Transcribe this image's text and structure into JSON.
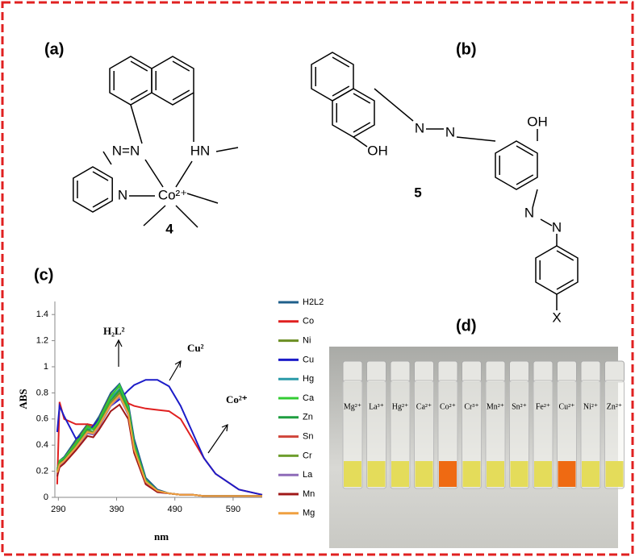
{
  "structures": [
    {
      "panel_label": "(a)",
      "number": "4",
      "labels": [
        "N=N",
        "HN",
        "N",
        "Co²⁺"
      ]
    },
    {
      "panel_label": "(b)",
      "number": "5",
      "labels": [
        "OH",
        "N",
        "N",
        "OH",
        "N",
        "N",
        "X"
      ]
    }
  ],
  "chart_data": {
    "type": "line",
    "panel_label": "(c)",
    "x_label": "nm",
    "y_label": "ABS",
    "annotations": [
      "H₂L²",
      "Cu²",
      "Co²⁺"
    ],
    "x": [
      288,
      292,
      300,
      320,
      340,
      350,
      360,
      380,
      395,
      410,
      420,
      440,
      460,
      480,
      500,
      520,
      540,
      560,
      600,
      640
    ],
    "xlim": [
      284,
      640
    ],
    "xticks": [
      290,
      390,
      490,
      590
    ],
    "ylim": [
      0,
      1.5
    ],
    "yticks": [
      0,
      0.2,
      0.4,
      0.6,
      0.8,
      1,
      1.2,
      1.4
    ],
    "series": [
      {
        "name": "H2L2",
        "color": "#1f5f8b",
        "values": [
          0.22,
          0.28,
          0.31,
          0.44,
          0.56,
          0.55,
          0.62,
          0.8,
          0.87,
          0.72,
          0.45,
          0.15,
          0.06,
          0.03,
          0.02,
          0.02,
          0.01,
          0.01,
          0.01,
          0.01
        ]
      },
      {
        "name": "Co",
        "color": "#e02020",
        "values": [
          0.1,
          0.73,
          0.6,
          0.56,
          0.56,
          0.55,
          0.6,
          0.72,
          0.8,
          0.72,
          0.7,
          0.68,
          0.67,
          0.66,
          0.6,
          0.45,
          0.3,
          0.18,
          0.06,
          0.02
        ]
      },
      {
        "name": "Ni",
        "color": "#6b8e23",
        "values": [
          0.2,
          0.27,
          0.3,
          0.42,
          0.55,
          0.53,
          0.6,
          0.78,
          0.85,
          0.68,
          0.4,
          0.13,
          0.05,
          0.03,
          0.02,
          0.02,
          0.01,
          0.01,
          0.01,
          0.01
        ]
      },
      {
        "name": "Cu",
        "color": "#1c1cc8",
        "values": [
          0.5,
          0.7,
          0.62,
          0.45,
          0.5,
          0.55,
          0.6,
          0.7,
          0.75,
          0.82,
          0.86,
          0.9,
          0.9,
          0.85,
          0.7,
          0.5,
          0.3,
          0.18,
          0.06,
          0.02
        ]
      },
      {
        "name": "Hg",
        "color": "#2a9aa8",
        "values": [
          0.19,
          0.26,
          0.29,
          0.4,
          0.53,
          0.52,
          0.58,
          0.76,
          0.83,
          0.67,
          0.39,
          0.12,
          0.05,
          0.03,
          0.02,
          0.02,
          0.01,
          0.01,
          0.01,
          0.01
        ]
      },
      {
        "name": "Ca",
        "color": "#33cc33",
        "values": [
          0.21,
          0.28,
          0.3,
          0.41,
          0.54,
          0.52,
          0.59,
          0.77,
          0.86,
          0.69,
          0.41,
          0.13,
          0.05,
          0.03,
          0.02,
          0.02,
          0.01,
          0.01,
          0.01,
          0.01
        ]
      },
      {
        "name": "Zn",
        "color": "#1e9e40",
        "values": [
          0.2,
          0.26,
          0.29,
          0.39,
          0.52,
          0.5,
          0.57,
          0.74,
          0.82,
          0.66,
          0.38,
          0.12,
          0.05,
          0.03,
          0.02,
          0.02,
          0.01,
          0.01,
          0.01,
          0.01
        ]
      },
      {
        "name": "Sn",
        "color": "#d0453a",
        "values": [
          0.18,
          0.25,
          0.28,
          0.38,
          0.5,
          0.49,
          0.55,
          0.72,
          0.79,
          0.64,
          0.37,
          0.12,
          0.05,
          0.03,
          0.02,
          0.02,
          0.01,
          0.01,
          0.01,
          0.01
        ]
      },
      {
        "name": "Cr",
        "color": "#6e9e2e",
        "values": [
          0.2,
          0.26,
          0.28,
          0.39,
          0.51,
          0.5,
          0.56,
          0.73,
          0.8,
          0.65,
          0.38,
          0.12,
          0.05,
          0.03,
          0.02,
          0.02,
          0.01,
          0.01,
          0.01,
          0.01
        ]
      },
      {
        "name": "La",
        "color": "#8e6bb8",
        "values": [
          0.17,
          0.24,
          0.27,
          0.37,
          0.49,
          0.48,
          0.54,
          0.7,
          0.77,
          0.63,
          0.36,
          0.11,
          0.04,
          0.03,
          0.02,
          0.02,
          0.01,
          0.01,
          0.01,
          0.01
        ]
      },
      {
        "name": "Mn",
        "color": "#a01818",
        "values": [
          0.16,
          0.23,
          0.26,
          0.36,
          0.47,
          0.46,
          0.52,
          0.66,
          0.71,
          0.6,
          0.34,
          0.1,
          0.04,
          0.03,
          0.02,
          0.02,
          0.01,
          0.01,
          0.01,
          0.01
        ]
      },
      {
        "name": "Mg",
        "color": "#f0a040",
        "values": [
          0.19,
          0.25,
          0.28,
          0.38,
          0.5,
          0.49,
          0.55,
          0.71,
          0.78,
          0.64,
          0.37,
          0.12,
          0.05,
          0.03,
          0.02,
          0.02,
          0.01,
          0.01,
          0.01,
          0.01
        ]
      }
    ]
  },
  "photo": {
    "panel_label": "(d)",
    "ions": [
      "Mg²⁺",
      "La³⁺",
      "Hg²⁺",
      "Ca²⁺",
      "Co²⁺",
      "Cr³⁺",
      "Mn²⁺",
      "Sn²⁺",
      "Fe²⁺",
      "Cu²⁺",
      "Ni²⁺",
      "Zn²⁺"
    ]
  }
}
